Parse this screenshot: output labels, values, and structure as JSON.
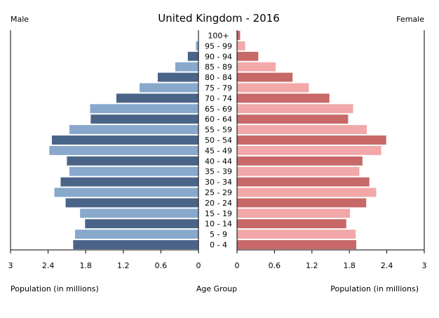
{
  "chart_data": {
    "type": "bar",
    "title": "United Kingdom - 2016",
    "left_label": "Male",
    "right_label": "Female",
    "xlabel_left": "Population (in millions)",
    "xlabel_center": "Age Group",
    "xlabel_right": "Population (in millions)",
    "xlim": [
      0,
      3
    ],
    "x_ticks": [
      3,
      2.4,
      1.8,
      1.2,
      0.6,
      0
    ],
    "x_ticks_right": [
      0,
      0.6,
      1.2,
      1.8,
      2.4,
      3
    ],
    "age_groups": [
      "100+",
      "95 - 99",
      "90 - 94",
      "85 - 89",
      "80 - 84",
      "75 - 79",
      "70 - 74",
      "65 - 69",
      "60 - 64",
      "55 - 59",
      "50 - 54",
      "45 - 49",
      "40 - 44",
      "35 - 39",
      "30 - 34",
      "25 - 29",
      "20 - 24",
      "15 - 19",
      "10 - 14",
      "5 - 9",
      "0 - 4"
    ],
    "series": [
      {
        "name": "Male",
        "values": [
          0.003,
          0.04,
          0.17,
          0.37,
          0.65,
          0.94,
          1.31,
          1.73,
          1.72,
          2.06,
          2.34,
          2.38,
          2.1,
          2.06,
          2.2,
          2.3,
          2.12,
          1.89,
          1.81,
          1.97,
          2.0
        ]
      },
      {
        "name": "Female",
        "values": [
          0.05,
          0.13,
          0.34,
          0.62,
          0.89,
          1.15,
          1.48,
          1.86,
          1.78,
          2.08,
          2.39,
          2.31,
          2.01,
          1.96,
          2.12,
          2.23,
          2.07,
          1.81,
          1.75,
          1.9,
          1.91
        ]
      }
    ],
    "colors": {
      "male_dark": "#4a6488",
      "male_light": "#88a8cc",
      "female_dark": "#c86868",
      "female_light": "#f2a8a8",
      "axis": "#000000"
    }
  }
}
